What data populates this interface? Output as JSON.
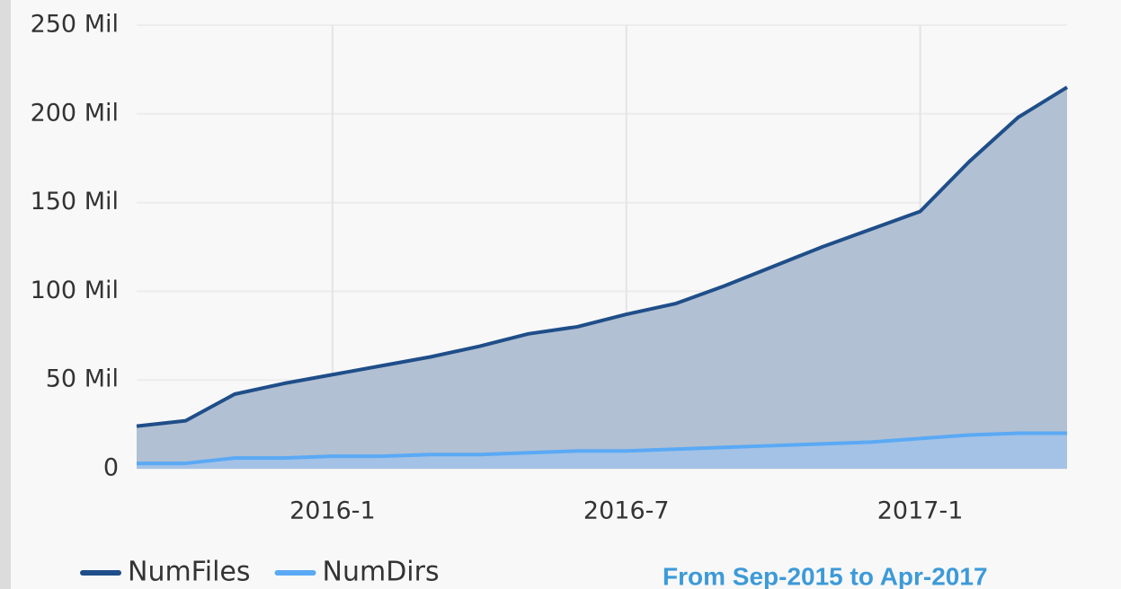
{
  "chart_data": {
    "type": "area",
    "x": [
      "2015-9",
      "2015-10",
      "2015-11",
      "2015-12",
      "2016-1",
      "2016-2",
      "2016-3",
      "2016-4",
      "2016-5",
      "2016-6",
      "2016-7",
      "2016-8",
      "2016-9",
      "2016-10",
      "2016-11",
      "2016-12",
      "2017-1",
      "2017-2",
      "2017-3",
      "2017-4"
    ],
    "series": [
      {
        "name": "NumFiles",
        "color": "#1f4e89",
        "fill": "#b1c0d3",
        "values": [
          24,
          27,
          42,
          48,
          53,
          58,
          63,
          69,
          76,
          80,
          87,
          93,
          103,
          114,
          125,
          135,
          145,
          173,
          198,
          215
        ]
      },
      {
        "name": "NumDirs",
        "color": "#5aa9f5",
        "fill": "#a3c2e6",
        "values": [
          3,
          3,
          6,
          6,
          7,
          7,
          8,
          8,
          9,
          10,
          10,
          11,
          12,
          13,
          14,
          15,
          17,
          19,
          20,
          20
        ]
      }
    ],
    "xlim": [
      "2015-9",
      "2017-4"
    ],
    "xticks": [
      "2016-1",
      "2016-7",
      "2017-1"
    ],
    "ylim": [
      0,
      250
    ],
    "yticks": [
      {
        "value": 0,
        "label": "0"
      },
      {
        "value": 50,
        "label": "50 Mil"
      },
      {
        "value": 100,
        "label": "100 Mil"
      },
      {
        "value": 150,
        "label": "150 Mil"
      },
      {
        "value": 200,
        "label": "200 Mil"
      },
      {
        "value": 250,
        "label": "250 Mil"
      }
    ],
    "grid": true,
    "legend": "bottom-left",
    "annotation": "From Sep-2015 to Apr-2017"
  }
}
